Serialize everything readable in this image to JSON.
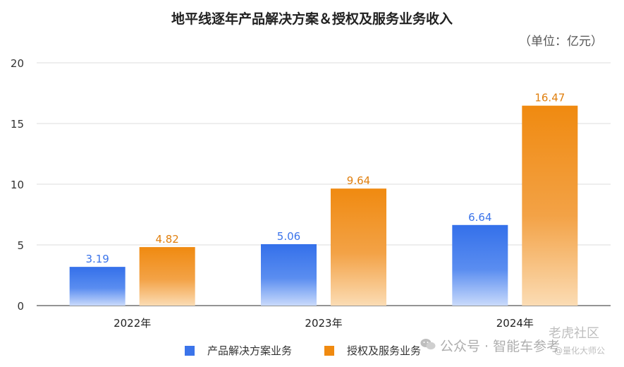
{
  "title": "地平线逐年产品解决方案＆授权及服务业务收入",
  "unit_label": "（单位：亿元）",
  "chart_data": {
    "type": "bar",
    "categories": [
      "2022年",
      "2023年",
      "2024年"
    ],
    "series": [
      {
        "name": "产品解决方案业务",
        "values": [
          3.19,
          5.06,
          6.64
        ],
        "labels": [
          "3.19",
          "5.06",
          "6.64"
        ],
        "color": "#3b74ea",
        "label_color": "#3b74ea"
      },
      {
        "name": "授权及服务业务",
        "values": [
          4.82,
          9.64,
          16.47
        ],
        "labels": [
          "4.82",
          "9.64",
          "16.47"
        ],
        "color": "#f08a10",
        "label_color": "#e07f0e"
      }
    ],
    "ylim": [
      0,
      20
    ],
    "yticks": [
      0,
      5,
      10,
      15,
      20
    ],
    "grid": true,
    "legend_position": "bottom"
  },
  "watermarks": {
    "wechat": "公众号 · 智能车参考",
    "site": "老虎社区",
    "site_sub": "@量化大师公"
  },
  "icons": {
    "wechat": "wechat-icon"
  }
}
